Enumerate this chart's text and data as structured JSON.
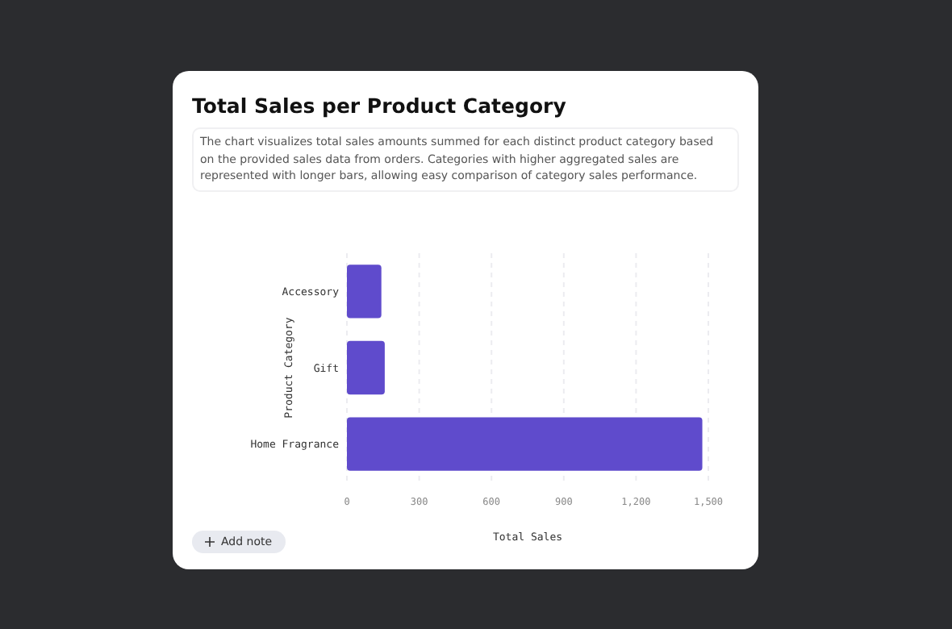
{
  "chart_data": {
    "type": "bar",
    "orientation": "horizontal",
    "title": "Total Sales per Product Category",
    "subtitle": "The chart visualizes total sales amounts summed for each distinct product category based on the provided sales data from orders. Categories with higher aggregated sales are represented with longer bars, allowing easy comparison of category sales performance.",
    "categories": [
      "Accessory",
      "Gift",
      "Home Fragrance"
    ],
    "values": [
      143,
      157,
      1475
    ],
    "color": "#5f4bcc",
    "xlabel": "Total Sales",
    "ylabel": "Product Category",
    "xlim": [
      0,
      1500
    ],
    "xticks": [
      0,
      300,
      600,
      900,
      {
        "value": 1200,
        "label": "1,200"
      },
      {
        "value": 1500,
        "label": "1,500"
      }
    ],
    "grid": "x",
    "annotations": [
      "Add note"
    ]
  }
}
